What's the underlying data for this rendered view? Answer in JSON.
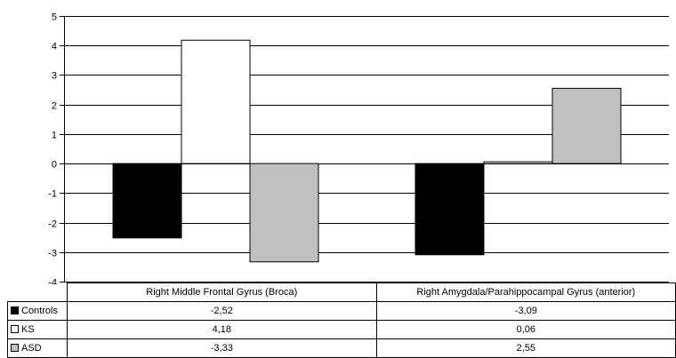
{
  "chart_data": {
    "type": "bar",
    "categories": [
      "Right Middle Frontal Gyrus (Broca)",
      "Right Amygdala/Parahippocampal Gyrus (anterior)"
    ],
    "series": [
      {
        "name": "Controls",
        "values": [
          -2.52,
          -3.09
        ],
        "labels": [
          "-2,52",
          "-3,09"
        ],
        "color": "#000000"
      },
      {
        "name": "KS",
        "values": [
          4.18,
          0.06
        ],
        "labels": [
          "4,18",
          "0,06"
        ],
        "color": "#ffffff"
      },
      {
        "name": "ASD",
        "values": [
          -3.33,
          2.55
        ],
        "labels": [
          "-3,33",
          "2,55"
        ],
        "color": "#c0c0c0"
      }
    ],
    "ylim": [
      -4,
      5
    ],
    "yticks": [
      5,
      4,
      3,
      2,
      1,
      0,
      -1,
      -2,
      -3,
      -4
    ],
    "grid": true,
    "legend": "data-table"
  }
}
